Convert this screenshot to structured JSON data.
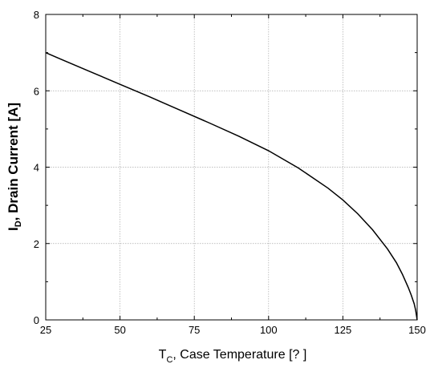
{
  "chart_data": {
    "type": "line",
    "xlabel_main": "T",
    "xlabel_sub": "C",
    "xlabel_rest": ", Case Temperature [? ]",
    "ylabel_main": "I",
    "ylabel_sub": "D",
    "ylabel_rest": ", Drain Current [A]",
    "xlim": [
      25,
      150
    ],
    "ylim": [
      0,
      8
    ],
    "x_ticks": [
      "25",
      "50",
      "75",
      "100",
      "125",
      "150"
    ],
    "y_ticks": [
      "0",
      "2",
      "4",
      "6",
      "8"
    ],
    "grid": true,
    "series": [
      {
        "x": [
          25,
          30,
          40,
          50,
          60,
          70,
          80,
          90,
          100,
          110,
          120,
          125,
          130,
          135,
          140,
          143,
          145,
          147,
          148,
          149,
          149.5,
          150
        ],
        "y": [
          7.0,
          6.83,
          6.5,
          6.17,
          5.84,
          5.5,
          5.16,
          4.81,
          4.43,
          3.98,
          3.45,
          3.14,
          2.78,
          2.36,
          1.86,
          1.5,
          1.2,
          0.85,
          0.65,
          0.42,
          0.25,
          0.0
        ]
      }
    ],
    "colors": {
      "line": "#000000",
      "grid": "#aaaaaa",
      "axis": "#000000"
    }
  }
}
